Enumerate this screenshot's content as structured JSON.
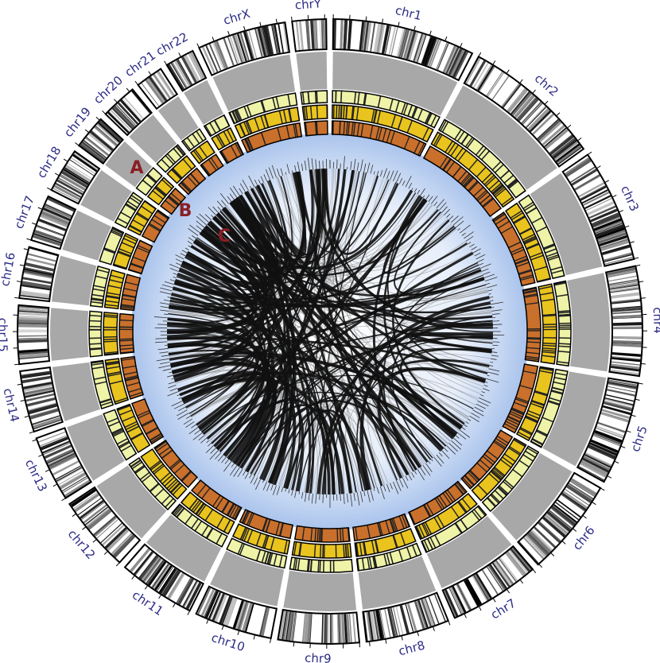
{
  "ideogram": {
    "chromosomes": [
      "chr1",
      "chr2",
      "chr3",
      "chr4",
      "chr5",
      "chr6",
      "chr7",
      "chr8",
      "chr9",
      "chr10",
      "chr11",
      "chr12",
      "chr13",
      "chr14",
      "chr15",
      "chr16",
      "chr17",
      "chr18",
      "chr19",
      "chr20",
      "chr21",
      "chr22",
      "chrX",
      "chrY"
    ]
  },
  "annotations": [
    "A",
    "B",
    "C"
  ]
}
